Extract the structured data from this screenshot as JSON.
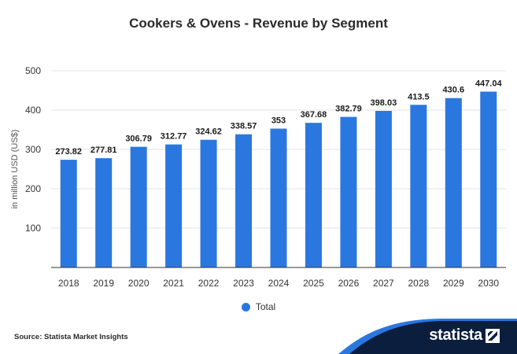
{
  "chart_data": {
    "type": "bar",
    "title": "Cookers & Ovens - Revenue by Segment",
    "xlabel": "",
    "ylabel": "in million USD (US$)",
    "ylim": [
      0,
      500
    ],
    "yticks": [
      100,
      200,
      300,
      400,
      500
    ],
    "grid": true,
    "legend_position": "bottom",
    "categories": [
      "2018",
      "2019",
      "2020",
      "2021",
      "2022",
      "2023",
      "2024",
      "2025",
      "2026",
      "2027",
      "2028",
      "2029",
      "2030"
    ],
    "series": [
      {
        "name": "Total",
        "color": "#2a77e0",
        "values": [
          273.82,
          277.81,
          306.79,
          312.77,
          324.62,
          338.57,
          353,
          367.68,
          382.79,
          398.03,
          413.5,
          430.6,
          447.04
        ],
        "labels": [
          "273.82",
          "277.81",
          "306.79",
          "312.77",
          "324.62",
          "338.57",
          "353",
          "367.68",
          "382.79",
          "398.03",
          "413.5",
          "430.6",
          "447.04"
        ]
      }
    ]
  },
  "footer": {
    "source": "Source: Statista Market Insights",
    "brand": "statista",
    "brand_color": "#0c1e3e"
  }
}
